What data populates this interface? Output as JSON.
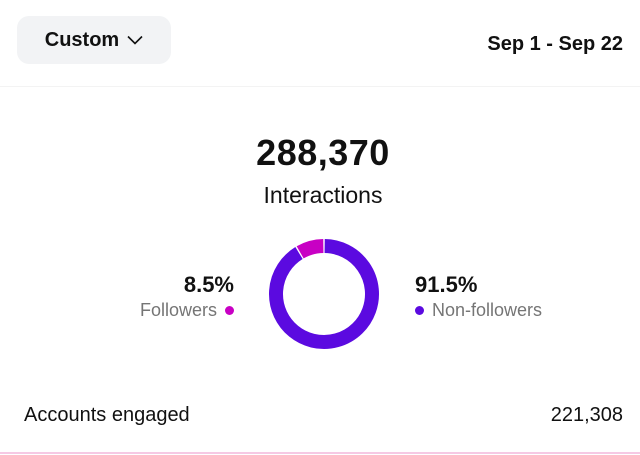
{
  "filter": {
    "label": "Custom",
    "icon": "chevron-down-icon"
  },
  "date_range": "Sep 1 - Sep 22",
  "summary": {
    "total": "288,370",
    "metric": "Interactions"
  },
  "breakdown": [
    {
      "label": "Followers",
      "percent_text": "8.5%",
      "value": 8.5,
      "color": "#c800c4"
    },
    {
      "label": "Non-followers",
      "percent_text": "91.5%",
      "value": 91.5,
      "color": "#5b0ae0"
    }
  ],
  "accounts_engaged": {
    "label": "Accounts engaged",
    "value": "221,308"
  }
}
